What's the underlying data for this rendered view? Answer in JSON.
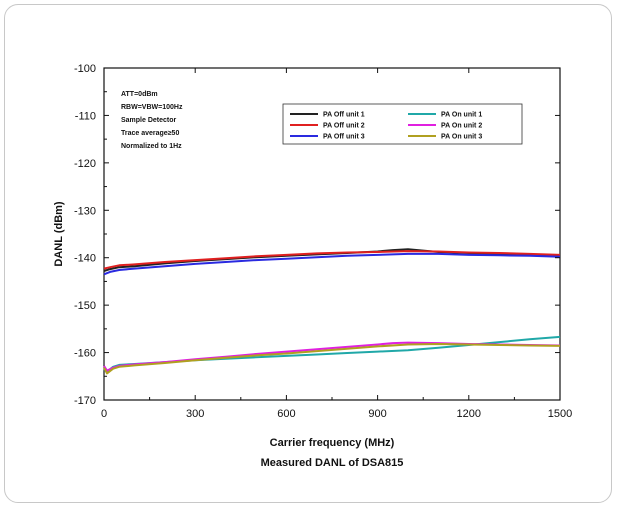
{
  "chart_data": {
    "type": "line",
    "title": "",
    "caption": "Measured DANL of DSA815",
    "xlabel": "Carrier frequency (MHz)",
    "ylabel": "DANL (dBm)",
    "xlim": [
      0,
      1500
    ],
    "ylim": [
      -170,
      -100
    ],
    "xticks": [
      0,
      300,
      600,
      900,
      1200,
      1500
    ],
    "yticks": [
      -100,
      -110,
      -120,
      -130,
      -140,
      -150,
      -160,
      -170
    ],
    "grid": false,
    "legend_position": "top-right",
    "annotations": [
      "ATT=0dBm",
      "RBW=VBW=100Hz",
      "Sample Detector",
      "Trace average≥50",
      "Normalized to 1Hz"
    ],
    "series": [
      {
        "name": "PA Off  unit 1",
        "color": "#222222",
        "x": [
          0,
          20,
          50,
          100,
          200,
          300,
          400,
          500,
          600,
          700,
          800,
          900,
          950,
          1000,
          1050,
          1100,
          1200,
          1300,
          1400,
          1500
        ],
        "y": [
          -142.8,
          -142.4,
          -142.0,
          -141.8,
          -141.2,
          -140.7,
          -140.3,
          -139.9,
          -139.6,
          -139.3,
          -139.0,
          -138.7,
          -138.4,
          -138.2,
          -138.5,
          -138.8,
          -139.0,
          -139.2,
          -139.3,
          -139.5
        ]
      },
      {
        "name": "PA Off  unit 2",
        "color": "#e02020",
        "x": [
          0,
          20,
          50,
          100,
          200,
          300,
          400,
          500,
          600,
          700,
          800,
          900,
          1000,
          1100,
          1200,
          1300,
          1400,
          1500
        ],
        "y": [
          -142.3,
          -142.0,
          -141.6,
          -141.4,
          -140.9,
          -140.5,
          -140.1,
          -139.7,
          -139.4,
          -139.1,
          -138.9,
          -138.8,
          -138.6,
          -138.7,
          -138.9,
          -139.0,
          -139.2,
          -139.4
        ]
      },
      {
        "name": "PA Off  unit 3",
        "color": "#2a2ae0",
        "x": [
          0,
          20,
          50,
          100,
          200,
          300,
          400,
          500,
          600,
          700,
          800,
          900,
          1000,
          1100,
          1200,
          1300,
          1400,
          1500
        ],
        "y": [
          -143.5,
          -143.0,
          -142.6,
          -142.3,
          -141.8,
          -141.3,
          -140.9,
          -140.5,
          -140.2,
          -139.9,
          -139.6,
          -139.4,
          -139.2,
          -139.2,
          -139.4,
          -139.5,
          -139.6,
          -139.8
        ]
      },
      {
        "name": "PA On  unit 1",
        "color": "#20a8a8",
        "x": [
          0,
          10,
          30,
          50,
          100,
          200,
          300,
          400,
          500,
          600,
          700,
          800,
          900,
          1000,
          1100,
          1200,
          1300,
          1400,
          1500
        ],
        "y": [
          -163.5,
          -164.0,
          -163.0,
          -162.6,
          -162.4,
          -162.0,
          -161.6,
          -161.3,
          -161.0,
          -160.7,
          -160.4,
          -160.1,
          -159.8,
          -159.5,
          -159.0,
          -158.4,
          -157.8,
          -157.2,
          -156.7
        ]
      },
      {
        "name": "PA On  unit 2",
        "color": "#e020e0",
        "x": [
          0,
          10,
          30,
          50,
          100,
          200,
          300,
          400,
          500,
          600,
          700,
          800,
          900,
          950,
          1000,
          1100,
          1200,
          1300,
          1400,
          1500
        ],
        "y": [
          -162.8,
          -163.8,
          -163.2,
          -162.8,
          -162.5,
          -162.0,
          -161.4,
          -160.9,
          -160.3,
          -159.8,
          -159.3,
          -158.8,
          -158.3,
          -158.0,
          -157.9,
          -158.0,
          -158.2,
          -158.3,
          -158.4,
          -158.5
        ]
      },
      {
        "name": "PA On  unit 3",
        "color": "#b0a020",
        "x": [
          0,
          10,
          30,
          50,
          100,
          200,
          300,
          400,
          500,
          600,
          700,
          800,
          900,
          1000,
          1100,
          1200,
          1300,
          1400,
          1500
        ],
        "y": [
          -163.2,
          -164.4,
          -163.4,
          -163.0,
          -162.7,
          -162.2,
          -161.6,
          -161.1,
          -160.6,
          -160.2,
          -159.7,
          -159.2,
          -158.7,
          -158.3,
          -158.2,
          -158.3,
          -158.4,
          -158.5,
          -158.6
        ]
      }
    ]
  }
}
